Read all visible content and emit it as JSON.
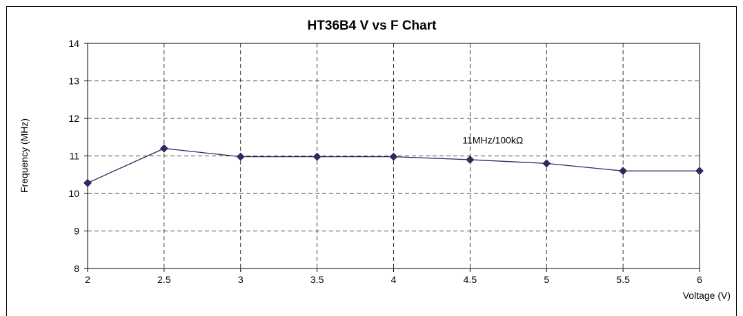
{
  "chart_data": {
    "type": "line",
    "title": "HT36B4 V vs F Chart",
    "xlabel": "Voltage (V)",
    "ylabel": "Frequency (MHz)",
    "xlim": [
      2,
      6
    ],
    "ylim": [
      8,
      14
    ],
    "x_ticks": [
      "2",
      "2.5",
      "3",
      "3.5",
      "4",
      "4.5",
      "5",
      "5.5",
      "6"
    ],
    "y_ticks": [
      "8",
      "9",
      "10",
      "11",
      "12",
      "13",
      "14"
    ],
    "grid": true,
    "grid_style": "dashed",
    "series": [
      {
        "x": [
          2,
          2.5,
          3,
          3.5,
          4,
          4.5,
          5,
          5.5,
          6
        ],
        "y": [
          10.28,
          11.2,
          10.98,
          10.98,
          10.98,
          10.9,
          10.8,
          10.6,
          10.6
        ],
        "color": "#2b2b5e",
        "marker": "diamond"
      }
    ],
    "annotations": [
      {
        "text": "11MHz/100kΩ",
        "x": 4.45,
        "y": 11.33
      }
    ]
  }
}
